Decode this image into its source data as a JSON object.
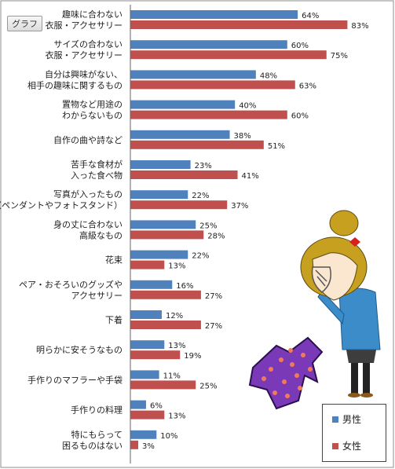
{
  "ui": {
    "tab_label": "グラフ"
  },
  "chart_data": {
    "type": "bar",
    "orientation": "horizontal",
    "title": "",
    "xlim": [
      0,
      100
    ],
    "series": [
      {
        "name": "男性",
        "color": "#4f81bd",
        "values": [
          64,
          60,
          48,
          40,
          38,
          23,
          22,
          25,
          22,
          16,
          12,
          13,
          11,
          6,
          10
        ]
      },
      {
        "name": "女性",
        "color": "#c0504d",
        "values": [
          83,
          75,
          63,
          60,
          51,
          41,
          37,
          28,
          13,
          27,
          27,
          19,
          25,
          13,
          3
        ]
      }
    ],
    "categories": [
      [
        "趣味に合わない",
        "衣服・アクセサリー"
      ],
      [
        "サイズの合わない",
        "衣服・アクセサリー"
      ],
      [
        "自分は興味がない、",
        "相手の趣味に関するもの"
      ],
      [
        "置物など用途の",
        "わからないもの"
      ],
      [
        "自作の曲や詩など"
      ],
      [
        "苦手な食材が",
        "入った食べ物"
      ],
      [
        "写真が入ったもの",
        "（ペンダントやフォトスタンド）"
      ],
      [
        "身の丈に合わない",
        "高級なもの"
      ],
      [
        "花束"
      ],
      [
        "ペア・おそろいのグッズや",
        "アクセサリー"
      ],
      [
        "下着"
      ],
      [
        "明らかに安そうなもの"
      ],
      [
        "手作りのマフラーや手袋"
      ],
      [
        "手作りの料理"
      ],
      [
        "特にもらって",
        "困るものはない"
      ]
    ],
    "value_suffix": "%",
    "legend": "bottom-right"
  }
}
